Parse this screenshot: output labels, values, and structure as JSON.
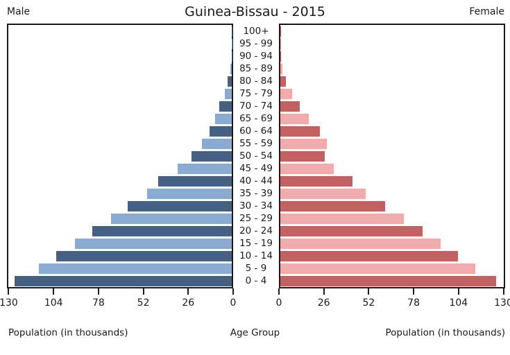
{
  "title": "Guinea-Bissau - 2015",
  "headers": {
    "male": "Male",
    "female": "Female"
  },
  "captions": {
    "left": "Population (in thousands)",
    "center": "Age Group",
    "right": "Population (in thousands)"
  },
  "axis": {
    "ticks_left": [
      130,
      104,
      78,
      52,
      26,
      0
    ],
    "ticks_right": [
      0,
      26,
      52,
      78,
      104,
      130
    ],
    "max": 131
  },
  "colors": {
    "male_dark": "#466084",
    "male_light": "#8AAAD2",
    "female_dark": "#C26161",
    "female_light": "#F0ACAC",
    "axis_line": "#1a1a1a",
    "text": "#1a1a1a"
  },
  "chart_data": {
    "type": "bar",
    "subtype": "population_pyramid",
    "title": "Guinea-Bissau - 2015",
    "xlabel": "Population (in thousands)",
    "ylabel": "Age Group",
    "xlim": [
      0,
      131
    ],
    "x_ticks": [
      0,
      26,
      52,
      78,
      104,
      130
    ],
    "categories": [
      "100+",
      "95 - 99",
      "90 - 94",
      "85 - 89",
      "80 - 84",
      "75 - 79",
      "70 - 74",
      "65 - 69",
      "60 - 64",
      "55 - 59",
      "50 - 54",
      "45 - 49",
      "40 - 44",
      "35 - 39",
      "30 - 34",
      "25 - 29",
      "20 - 24",
      "15 - 19",
      "10 - 14",
      "5 - 9",
      "0 - 4"
    ],
    "series": [
      {
        "name": "Male",
        "side": "left",
        "values": [
          0.1,
          0.1,
          0.2,
          0.7,
          2.4,
          4.1,
          7.2,
          9.8,
          13.1,
          17.5,
          23.6,
          31.9,
          43.0,
          49.6,
          61.0,
          70.8,
          81.9,
          92.0,
          102.8,
          113.2,
          127.2
        ]
      },
      {
        "name": "Female",
        "side": "right",
        "values": [
          0.1,
          0.1,
          0.3,
          1.2,
          3.2,
          7.0,
          11.4,
          16.7,
          23.0,
          27.2,
          26.0,
          31.2,
          42.4,
          50.2,
          61.6,
          72.4,
          83.5,
          93.9,
          104.0,
          114.3,
          126.6
        ]
      }
    ],
    "legend": "none",
    "grid": false
  }
}
